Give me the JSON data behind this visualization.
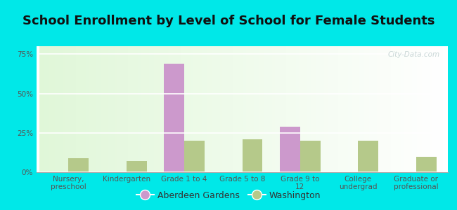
{
  "title": "School Enrollment by Level of School for Female Students",
  "categories": [
    "Nursery,\npreschool",
    "Kindergarten",
    "Grade 1 to 4",
    "Grade 5 to 8",
    "Grade 9 to\n12",
    "College\nundergrad",
    "Graduate or\nprofessional"
  ],
  "aberdeen_values": [
    0,
    0,
    69,
    0,
    29,
    0,
    0
  ],
  "washington_values": [
    9,
    7,
    20,
    21,
    20,
    20,
    10
  ],
  "aberdeen_color": "#cc99cc",
  "washington_color": "#b5c98a",
  "background_color": "#00e8e8",
  "ylim": [
    0,
    80
  ],
  "yticks": [
    0,
    25,
    50,
    75
  ],
  "ytick_labels": [
    "0%",
    "25%",
    "50%",
    "75%"
  ],
  "legend_aberdeen": "Aberdeen Gardens",
  "legend_washington": "Washington",
  "bar_width": 0.35,
  "title_fontsize": 13,
  "tick_fontsize": 7.5,
  "legend_fontsize": 9,
  "watermark": "City-Data.com"
}
